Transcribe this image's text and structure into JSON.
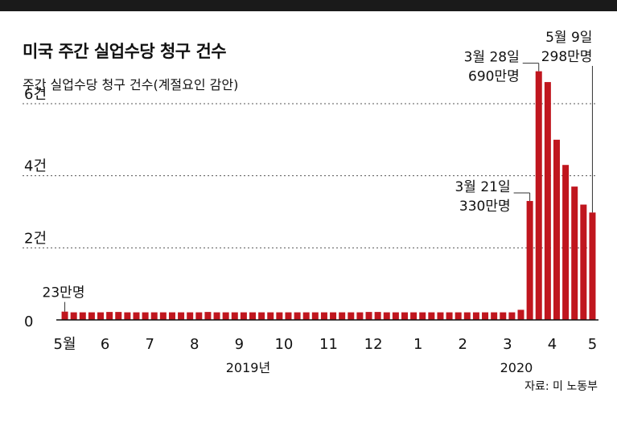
{
  "title": "미국 주간 실업수당 청구 건수",
  "subtitle": "주간 실업수당 청구 건수(계절요인 감안)",
  "source": "자료: 미 노동부",
  "chart_data": {
    "type": "bar",
    "ylabel": "주간 실업수당 청구 건수(계절요인 감안)",
    "ylim": [
      0,
      6.2
    ],
    "yticks": [
      {
        "value": 0,
        "label": "0"
      },
      {
        "value": 2,
        "label": "2건"
      },
      {
        "value": 4,
        "label": "4건"
      },
      {
        "value": 6,
        "label": "6건"
      }
    ],
    "color": "#c0161e",
    "grid": true,
    "values": [
      0.23,
      0.21,
      0.21,
      0.21,
      0.21,
      0.22,
      0.22,
      0.21,
      0.21,
      0.21,
      0.21,
      0.21,
      0.21,
      0.21,
      0.21,
      0.21,
      0.22,
      0.21,
      0.21,
      0.21,
      0.21,
      0.21,
      0.21,
      0.21,
      0.21,
      0.21,
      0.21,
      0.21,
      0.21,
      0.21,
      0.21,
      0.21,
      0.21,
      0.21,
      0.22,
      0.22,
      0.21,
      0.21,
      0.21,
      0.21,
      0.21,
      0.21,
      0.21,
      0.21,
      0.21,
      0.21,
      0.21,
      0.21,
      0.21,
      0.21,
      0.21,
      0.28,
      3.3,
      6.9,
      6.6,
      5.0,
      4.3,
      3.7,
      3.2,
      2.98
    ],
    "month_ticks": [
      {
        "label": "5월",
        "index": 0
      },
      {
        "label": "6",
        "index": 4.5
      },
      {
        "label": "7",
        "index": 9.5
      },
      {
        "label": "8",
        "index": 14.5
      },
      {
        "label": "9",
        "index": 19.5
      },
      {
        "label": "10",
        "index": 24.5
      },
      {
        "label": "11",
        "index": 29.5
      },
      {
        "label": "12",
        "index": 34.5
      },
      {
        "label": "1",
        "index": 39.5
      },
      {
        "label": "2",
        "index": 44.5
      },
      {
        "label": "3",
        "index": 49.5
      },
      {
        "label": "4",
        "index": 54.5
      },
      {
        "label": "5",
        "index": 59
      }
    ],
    "year_labels": [
      {
        "label": "2019년",
        "index": 20.5
      },
      {
        "label": "2020",
        "index": 50.5
      }
    ],
    "annotations": [
      {
        "index": 0,
        "lines": [
          "23만명"
        ],
        "style": "above"
      },
      {
        "index": 52,
        "lines": [
          "3월 21일",
          "330만명"
        ],
        "style": "left"
      },
      {
        "index": 53,
        "lines": [
          "3월 28일",
          "690만명"
        ],
        "style": "left"
      },
      {
        "index": 59,
        "lines": [
          "5월 9일",
          "298만명"
        ],
        "style": "top"
      }
    ]
  }
}
